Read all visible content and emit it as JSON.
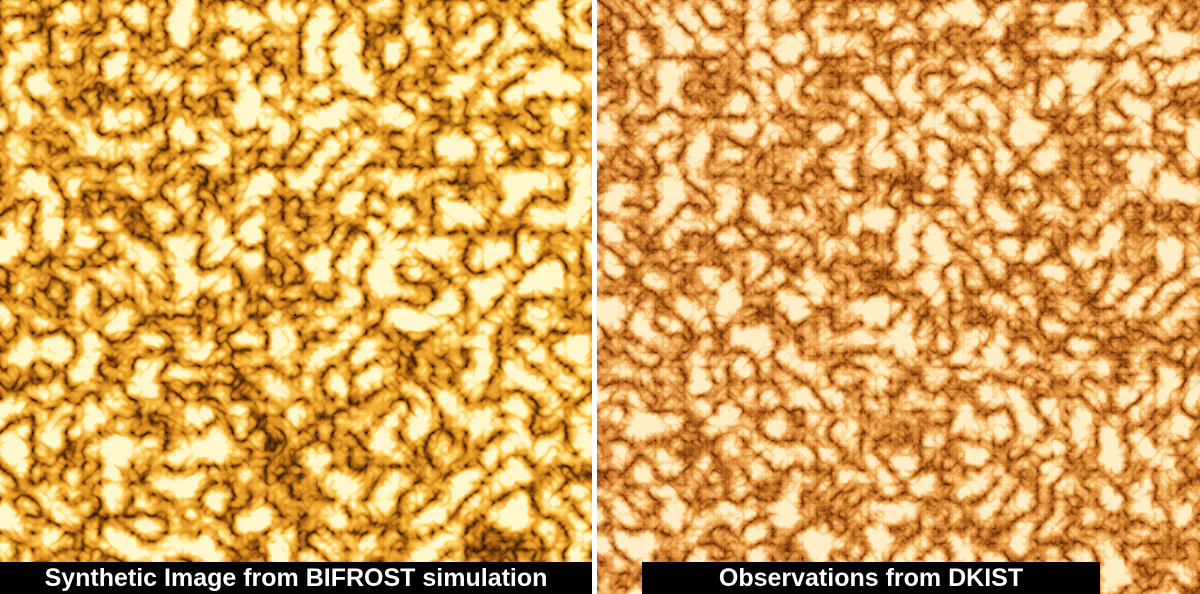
{
  "captions": {
    "left": "Synthetic Image from BIFROST simulation",
    "right": "Observations from DKIST"
  }
}
